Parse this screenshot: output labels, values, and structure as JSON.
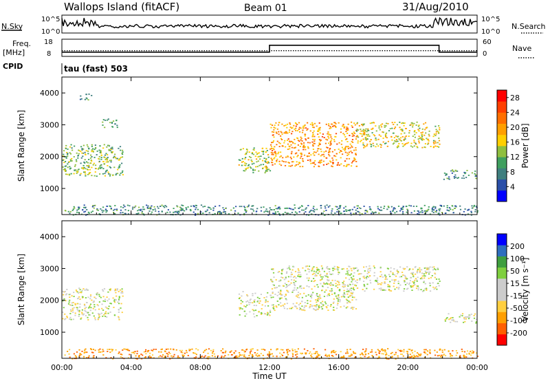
{
  "header": {
    "station": "Wallops Island (fitACF)",
    "beam": "Beam 01",
    "date": "31/Aug/2010"
  },
  "strip": {
    "nsky_label": "N.Sky",
    "nsky_ticks": [
      "10^5",
      "10^0"
    ],
    "nsearch_label": "N.Search",
    "freq_label_1": "Freq.",
    "freq_label_2": "[MHz]",
    "freq_ticks": [
      "18",
      "8"
    ],
    "nave_label": "Nave",
    "nave_ticks": [
      "60",
      "0"
    ],
    "cpid_label": "CPID",
    "cpid_value": "tau (fast) 503"
  },
  "colors": {
    "power_scale": [
      "#0000ff",
      "#2a4fa8",
      "#3f7f7f",
      "#3f9f5f",
      "#8fbf3f",
      "#ffcf00",
      "#ff9f00",
      "#ff6f00",
      "#ff3f00",
      "#ff0000"
    ],
    "velocity_scale": [
      "#ff0000",
      "#ff5f00",
      "#ff9f00",
      "#ffcf40",
      "#cccccc",
      "#cccccc",
      "#7fcf3f",
      "#3f9f3f",
      "#2f6fbf",
      "#0000ff"
    ],
    "ground_grey": "#c8c8c8"
  },
  "chart_data": [
    {
      "type": "heatmap",
      "name": "power",
      "xlabel": "",
      "ylabel": "Slant Range [km]",
      "y_ticks": [
        "4000",
        "3000",
        "2000",
        "1000"
      ],
      "ylim": [
        180,
        4500
      ],
      "xlim": [
        0,
        24
      ],
      "colorbar_label": "Power [dB]",
      "colorbar_ticks": [
        "28",
        "24",
        "20",
        "16",
        "12",
        "8",
        "4"
      ],
      "colorbar_range": [
        0,
        30
      ],
      "echo_regions": [
        {
          "t_start": 0.0,
          "t_end": 3.5,
          "r_low": 1400,
          "r_high": 2400,
          "power": 10
        },
        {
          "t_start": 1.0,
          "t_end": 1.7,
          "r_low": 3800,
          "r_high": 4000,
          "power": 6
        },
        {
          "t_start": 2.3,
          "t_end": 3.2,
          "r_low": 2900,
          "r_high": 3200,
          "power": 8
        },
        {
          "t_start": 10.2,
          "t_end": 12.0,
          "r_low": 1500,
          "r_high": 2300,
          "power": 12
        },
        {
          "t_start": 12.0,
          "t_end": 17.0,
          "r_low": 1700,
          "r_high": 3100,
          "power": 18
        },
        {
          "t_start": 17.0,
          "t_end": 21.8,
          "r_low": 2300,
          "r_high": 3100,
          "power": 14
        },
        {
          "t_start": 22.0,
          "t_end": 24.0,
          "r_low": 1300,
          "r_high": 1600,
          "power": 8
        },
        {
          "t_start": 0.0,
          "t_end": 24.0,
          "r_low": 180,
          "r_high": 500,
          "power": 6
        }
      ]
    },
    {
      "type": "heatmap",
      "name": "velocity",
      "xlabel": "Time UT",
      "ylabel": "Slant Range [km]",
      "x_ticks": [
        "00:00",
        "04:00",
        "08:00",
        "12:00",
        "16:00",
        "20:00",
        "00:00"
      ],
      "x_tick_hours": [
        0,
        4,
        8,
        12,
        16,
        20,
        24
      ],
      "y_ticks": [
        "4000",
        "3000",
        "2000",
        "1000"
      ],
      "ylim": [
        180,
        4500
      ],
      "xlim": [
        0,
        24
      ],
      "colorbar_label": "Velocity [m s⁻¹]",
      "colorbar_ticks": [
        "200",
        "100",
        "50",
        "15",
        "-15",
        "-50",
        "-100",
        "-200"
      ],
      "colorbar_range": [
        -250,
        250
      ],
      "echo_regions": [
        {
          "t_start": 0.0,
          "t_end": 3.5,
          "r_low": 1400,
          "r_high": 2400,
          "velocity": 0
        },
        {
          "t_start": 10.2,
          "t_end": 12.0,
          "r_low": 1500,
          "r_high": 2300,
          "velocity": 0
        },
        {
          "t_start": 12.0,
          "t_end": 17.0,
          "r_low": 1700,
          "r_high": 3100,
          "velocity": 0
        },
        {
          "t_start": 17.0,
          "t_end": 21.8,
          "r_low": 2300,
          "r_high": 3100,
          "velocity": 0
        },
        {
          "t_start": 22.0,
          "t_end": 24.0,
          "r_low": 1300,
          "r_high": 1600,
          "velocity": 0
        },
        {
          "t_start": 0.0,
          "t_end": 24.0,
          "r_low": 180,
          "r_high": 500,
          "velocity": -60
        }
      ]
    }
  ],
  "frequency_series": {
    "hours": [
      0,
      12,
      12,
      21.8,
      21.8,
      24
    ],
    "mhz": [
      10.5,
      10.5,
      14.5,
      14.5,
      10.5,
      10.5
    ]
  },
  "nave_series": {
    "hours": [
      0,
      24
    ],
    "values": [
      20,
      20
    ]
  }
}
